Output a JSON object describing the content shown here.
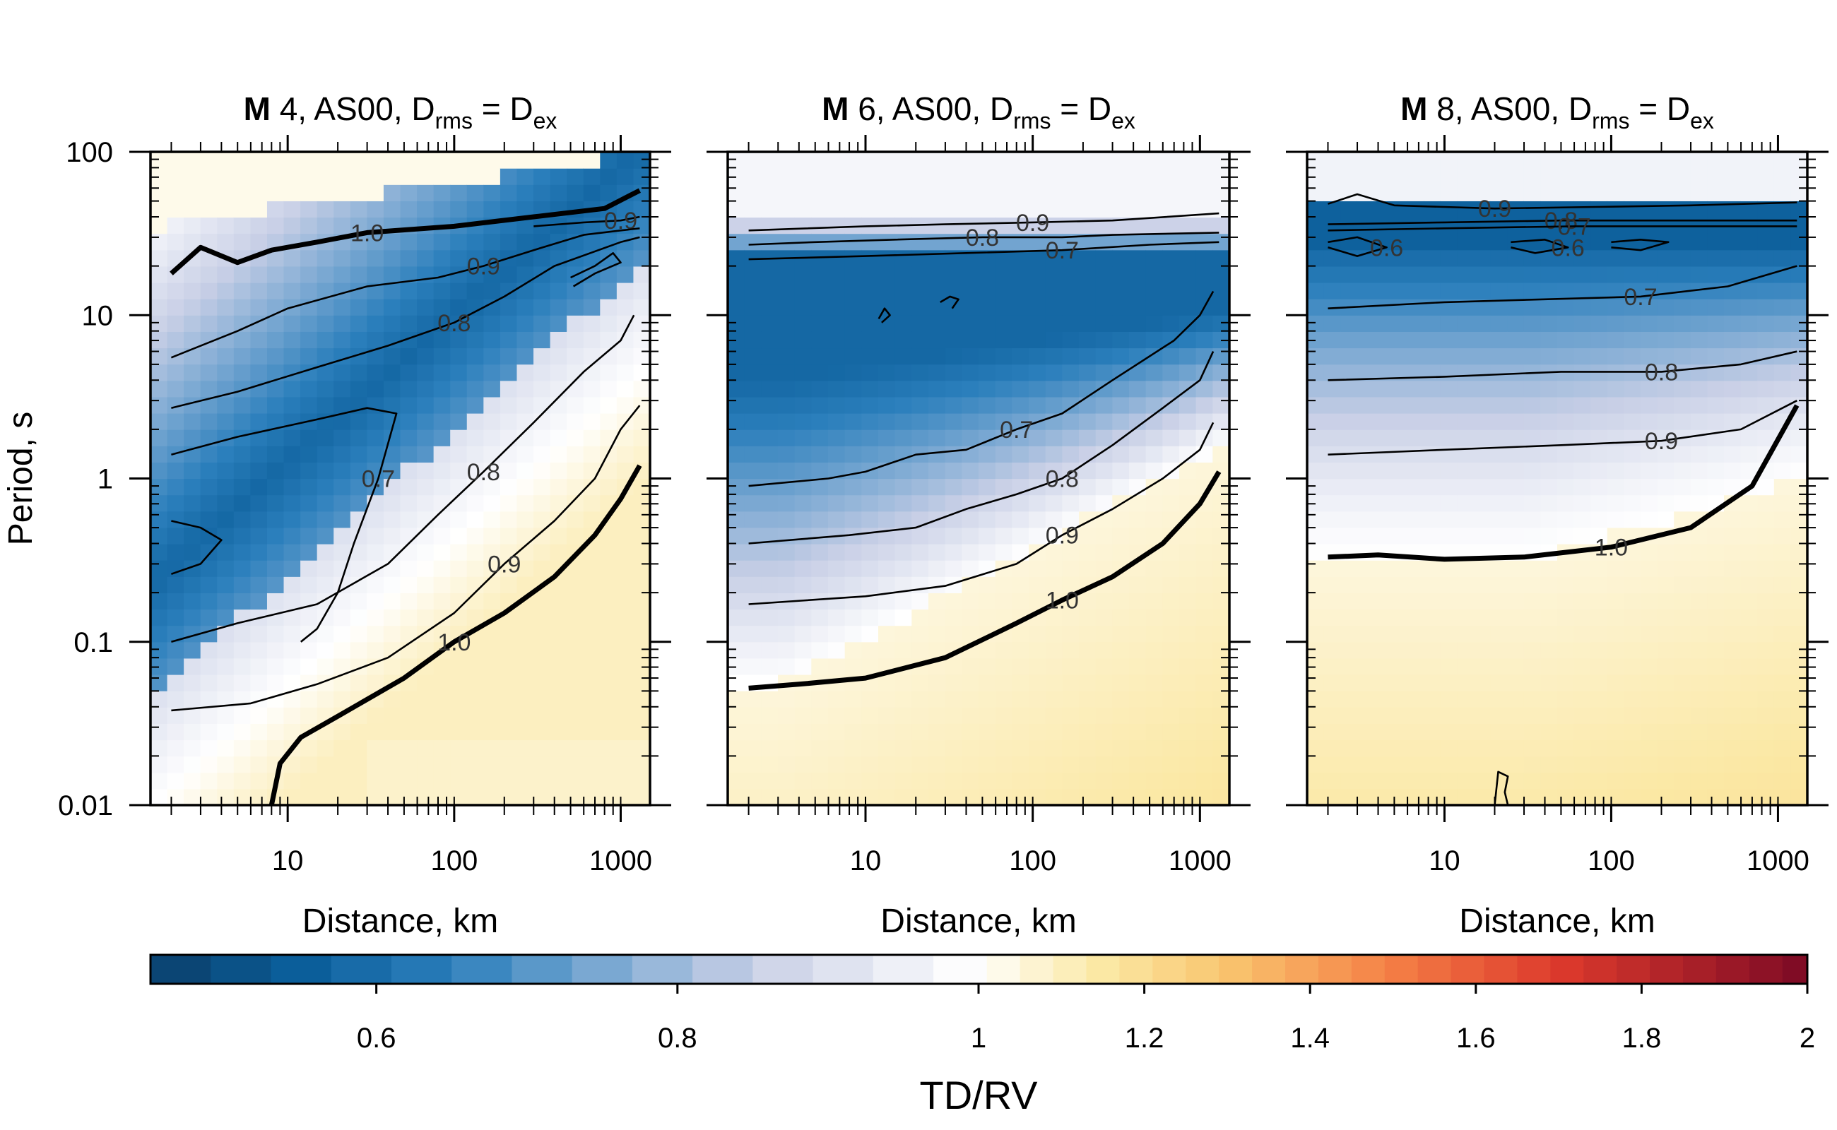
{
  "figure": {
    "colorbar": {
      "label": "TD/RV",
      "ticks": [
        "0.6",
        "0.8",
        "1",
        "1.2",
        "1.4",
        "1.6",
        "1.8",
        "2"
      ]
    },
    "y_axis": {
      "label": "Period, s",
      "ticks": [
        "100",
        "10",
        "1",
        "0.1",
        "0.01"
      ]
    },
    "x_axis": {
      "label": "Distance, km",
      "ticks": [
        "10",
        "100",
        "1000"
      ]
    }
  },
  "chart_data": [
    {
      "type": "heatmap",
      "title": {
        "bold": "M",
        "rest": " 4, AS00, D",
        "sub1": "rms",
        "eq": " = D",
        "sub2": "ex"
      },
      "xlabel": "Distance, km",
      "ylabel": "Period, s",
      "x_scale": "log",
      "y_scale": "log",
      "xlim": [
        1.5,
        1500
      ],
      "ylim": [
        0.01,
        100
      ],
      "color_scale": {
        "min": 0.45,
        "max": 2,
        "center": 1,
        "low": "#0b4a7c",
        "mid": "#ffffff",
        "high": "#7d0a25"
      },
      "contours": [
        {
          "level": 1.0,
          "label": "1.0",
          "bold": true,
          "points": [
            [
              2,
              18
            ],
            [
              3,
              26
            ],
            [
              5,
              21
            ],
            [
              8,
              25
            ],
            [
              15,
              28
            ],
            [
              30,
              32
            ],
            [
              100,
              35
            ],
            [
              300,
              40
            ],
            [
              800,
              45
            ],
            [
              1300,
              58
            ]
          ]
        },
        {
          "level": 1.0,
          "label": "1.0",
          "bold": true,
          "points": [
            [
              8,
              0.01
            ],
            [
              9,
              0.018
            ],
            [
              12,
              0.026
            ],
            [
              20,
              0.035
            ],
            [
              50,
              0.06
            ],
            [
              100,
              0.1
            ],
            [
              200,
              0.15
            ],
            [
              400,
              0.25
            ],
            [
              700,
              0.45
            ],
            [
              1000,
              0.75
            ],
            [
              1300,
              1.2
            ]
          ]
        },
        {
          "level": 0.9,
          "label": "0.9",
          "bold": false,
          "points": [
            [
              300,
              35
            ],
            [
              600,
              37
            ],
            [
              1000,
              38
            ],
            [
              1300,
              40
            ]
          ]
        },
        {
          "level": 0.9,
          "label": "0.9",
          "bold": false,
          "points": [
            [
              2,
              5.5
            ],
            [
              5,
              8
            ],
            [
              10,
              11
            ],
            [
              30,
              15
            ],
            [
              80,
              17
            ],
            [
              150,
              20
            ],
            [
              300,
              25
            ],
            [
              600,
              31
            ],
            [
              1000,
              33
            ],
            [
              1300,
              34
            ]
          ]
        },
        {
          "level": 0.8,
          "label": "0.8",
          "bold": false,
          "points": [
            [
              2,
              2.7
            ],
            [
              5,
              3.4
            ],
            [
              15,
              4.8
            ],
            [
              40,
              6.5
            ],
            [
              100,
              9
            ],
            [
              200,
              13
            ],
            [
              400,
              20
            ],
            [
              1000,
              28
            ],
            [
              1300,
              30
            ]
          ]
        },
        {
          "level": 0.7,
          "label": "0.7",
          "bold": false,
          "points": [
            [
              2,
              1.4
            ],
            [
              5,
              1.8
            ],
            [
              15,
              2.3
            ],
            [
              30,
              2.7
            ],
            [
              45,
              2.5
            ],
            [
              35,
              1
            ],
            [
              25,
              0.4
            ],
            [
              20,
              0.2
            ],
            [
              15,
              0.12
            ],
            [
              12,
              0.1
            ]
          ]
        },
        {
          "level": 0.6,
          "label": "",
          "bold": false,
          "points": [
            [
              2,
              0.55
            ],
            [
              3,
              0.5
            ],
            [
              4,
              0.42
            ],
            [
              3,
              0.3
            ],
            [
              2,
              0.26
            ]
          ]
        },
        {
          "level": 0.8,
          "label": "0.8",
          "bold": false,
          "points": [
            [
              2,
              0.1
            ],
            [
              5,
              0.13
            ],
            [
              15,
              0.17
            ],
            [
              40,
              0.3
            ],
            [
              80,
              0.6
            ],
            [
              150,
              1.1
            ],
            [
              300,
              2.2
            ],
            [
              600,
              4.5
            ],
            [
              1000,
              7
            ],
            [
              1200,
              10
            ]
          ]
        },
        {
          "level": 0.9,
          "label": "0.9",
          "bold": false,
          "points": [
            [
              2,
              0.038
            ],
            [
              6,
              0.042
            ],
            [
              15,
              0.055
            ],
            [
              40,
              0.08
            ],
            [
              100,
              0.15
            ],
            [
              200,
              0.3
            ],
            [
              400,
              0.55
            ],
            [
              700,
              1
            ],
            [
              1000,
              2
            ],
            [
              1300,
              2.8
            ]
          ]
        },
        {
          "level": 0.6,
          "label": "",
          "bold": false,
          "points": [
            [
              500,
              17
            ],
            [
              700,
              20
            ],
            [
              900,
              24
            ],
            [
              1000,
              21
            ],
            [
              700,
              18
            ],
            [
              520,
              15
            ]
          ]
        }
      ]
    },
    {
      "type": "heatmap",
      "title": {
        "bold": "M",
        "rest": " 6, AS00, D",
        "sub1": "rms",
        "eq": " = D",
        "sub2": "ex"
      },
      "xlabel": "Distance, km",
      "ylabel": "",
      "x_scale": "log",
      "y_scale": "log",
      "xlim": [
        1.5,
        1500
      ],
      "ylim": [
        0.01,
        100
      ],
      "contours": [
        {
          "level": 0.9,
          "label": "0.9",
          "bold": false,
          "points": [
            [
              2,
              33
            ],
            [
              10,
              35
            ],
            [
              30,
              36
            ],
            [
              100,
              37
            ],
            [
              300,
              38
            ],
            [
              1300,
              42
            ]
          ]
        },
        {
          "level": 0.8,
          "label": "0.8",
          "bold": false,
          "points": [
            [
              2,
              27
            ],
            [
              5,
              28
            ],
            [
              15,
              29
            ],
            [
              50,
              30
            ],
            [
              150,
              30
            ],
            [
              300,
              31
            ],
            [
              1300,
              32
            ]
          ]
        },
        {
          "level": 0.7,
          "label": "0.7",
          "bold": false,
          "points": [
            [
              2,
              22
            ],
            [
              10,
              23
            ],
            [
              40,
              24
            ],
            [
              150,
              25
            ],
            [
              500,
              27
            ],
            [
              1300,
              28
            ]
          ]
        },
        {
          "level": 0.6,
          "label": "",
          "bold": false,
          "points": [
            [
              12,
              9.5
            ],
            [
              13,
              11
            ],
            [
              14,
              10
            ],
            [
              12.5,
              9
            ]
          ]
        },
        {
          "level": 0.6,
          "label": "",
          "bold": false,
          "points": [
            [
              28,
              12
            ],
            [
              32,
              13
            ],
            [
              36,
              12.5
            ],
            [
              33,
              11
            ]
          ]
        },
        {
          "level": 0.7,
          "label": "0.7",
          "bold": false,
          "points": [
            [
              2,
              0.9
            ],
            [
              6,
              1
            ],
            [
              10,
              1.1
            ],
            [
              20,
              1.4
            ],
            [
              40,
              1.5
            ],
            [
              80,
              2
            ],
            [
              150,
              2.5
            ],
            [
              300,
              4
            ],
            [
              700,
              7
            ],
            [
              1000,
              10
            ],
            [
              1200,
              14
            ]
          ]
        },
        {
          "level": 0.8,
          "label": "0.8",
          "bold": false,
          "points": [
            [
              2,
              0.4
            ],
            [
              8,
              0.45
            ],
            [
              20,
              0.5
            ],
            [
              40,
              0.65
            ],
            [
              80,
              0.8
            ],
            [
              150,
              1
            ],
            [
              300,
              1.6
            ],
            [
              600,
              2.7
            ],
            [
              1000,
              4
            ],
            [
              1200,
              6
            ]
          ]
        },
        {
          "level": 0.9,
          "label": "0.9",
          "bold": false,
          "points": [
            [
              2,
              0.17
            ],
            [
              10,
              0.19
            ],
            [
              30,
              0.22
            ],
            [
              80,
              0.3
            ],
            [
              150,
              0.45
            ],
            [
              300,
              0.65
            ],
            [
              600,
              1
            ],
            [
              1000,
              1.5
            ],
            [
              1200,
              2.2
            ]
          ]
        },
        {
          "level": 1.0,
          "label": "1.0",
          "bold": true,
          "points": [
            [
              2,
              0.052
            ],
            [
              4,
              0.055
            ],
            [
              10,
              0.06
            ],
            [
              30,
              0.08
            ],
            [
              80,
              0.13
            ],
            [
              150,
              0.18
            ],
            [
              300,
              0.25
            ],
            [
              600,
              0.4
            ],
            [
              1000,
              0.7
            ],
            [
              1300,
              1.1
            ]
          ]
        }
      ]
    },
    {
      "type": "heatmap",
      "title": {
        "bold": "M",
        "rest": " 8, AS00, D",
        "sub1": "rms",
        "eq": " = D",
        "sub2": "ex"
      },
      "xlabel": "Distance, km",
      "ylabel": "",
      "x_scale": "log",
      "y_scale": "log",
      "xlim": [
        1.5,
        1500
      ],
      "ylim": [
        0.01,
        100
      ],
      "contours": [
        {
          "level": 0.9,
          "label": "0.9",
          "bold": false,
          "points": [
            [
              2,
              48
            ],
            [
              3,
              55
            ],
            [
              5,
              47
            ],
            [
              20,
              45
            ],
            [
              80,
              46
            ],
            [
              300,
              47
            ],
            [
              1300,
              49
            ]
          ]
        },
        {
          "level": 0.8,
          "label": "0.8",
          "bold": false,
          "points": [
            [
              2,
              36
            ],
            [
              10,
              37
            ],
            [
              50,
              38
            ],
            [
              200,
              38
            ],
            [
              1300,
              38
            ]
          ]
        },
        {
          "level": 0.7,
          "label": "0.7",
          "bold": false,
          "points": [
            [
              2,
              33
            ],
            [
              10,
              34
            ],
            [
              60,
              35
            ],
            [
              300,
              35
            ],
            [
              1300,
              35
            ]
          ]
        },
        {
          "level": 0.6,
          "label": "0.6",
          "bold": false,
          "points": [
            [
              2,
              28
            ],
            [
              3,
              30
            ],
            [
              4.5,
              26
            ],
            [
              3,
              23
            ],
            [
              2,
              26
            ]
          ]
        },
        {
          "level": 0.6,
          "label": "0.6",
          "bold": false,
          "points": [
            [
              25,
              28
            ],
            [
              40,
              29
            ],
            [
              55,
              26
            ],
            [
              35,
              24
            ],
            [
              25,
              26
            ]
          ]
        },
        {
          "level": 0.6,
          "label": "",
          "bold": false,
          "points": [
            [
              100,
              28
            ],
            [
              150,
              29
            ],
            [
              220,
              28
            ],
            [
              150,
              25
            ],
            [
              100,
              26
            ]
          ]
        },
        {
          "level": 0.7,
          "label": "0.7",
          "bold": false,
          "points": [
            [
              2,
              11
            ],
            [
              10,
              12
            ],
            [
              40,
              12.5
            ],
            [
              150,
              13
            ],
            [
              500,
              15
            ],
            [
              1300,
              20
            ]
          ]
        },
        {
          "level": 0.8,
          "label": "0.8",
          "bold": false,
          "points": [
            [
              2,
              4
            ],
            [
              10,
              4.2
            ],
            [
              50,
              4.5
            ],
            [
              200,
              4.5
            ],
            [
              600,
              5
            ],
            [
              1300,
              6
            ]
          ]
        },
        {
          "level": 0.9,
          "label": "0.9",
          "bold": false,
          "points": [
            [
              2,
              1.4
            ],
            [
              10,
              1.5
            ],
            [
              50,
              1.6
            ],
            [
              200,
              1.7
            ],
            [
              600,
              2
            ],
            [
              1300,
              3
            ]
          ]
        },
        {
          "level": 1.0,
          "label": "1.0",
          "bold": true,
          "points": [
            [
              2,
              0.33
            ],
            [
              4,
              0.34
            ],
            [
              10,
              0.32
            ],
            [
              30,
              0.33
            ],
            [
              100,
              0.38
            ],
            [
              300,
              0.5
            ],
            [
              700,
              0.9
            ],
            [
              1300,
              2.8
            ]
          ]
        },
        {
          "level": 1.2,
          "label": "",
          "bold": false,
          "points": [
            [
              20,
              0.01
            ],
            [
              21,
              0.016
            ],
            [
              24,
              0.015
            ],
            [
              23,
              0.012
            ],
            [
              24,
              0.01
            ]
          ]
        }
      ]
    }
  ]
}
